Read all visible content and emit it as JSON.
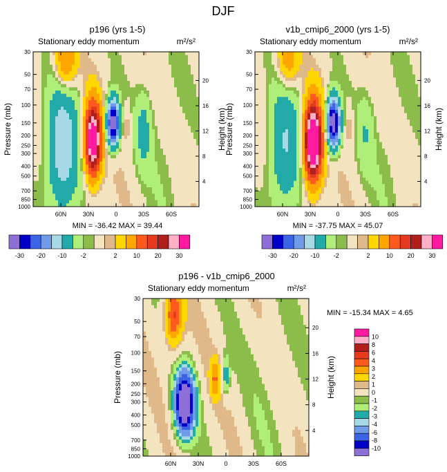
{
  "figure_title": "DJF",
  "palette_main": [
    "#8e6fd6",
    "#0000c8",
    "#3c64e6",
    "#6f9be8",
    "#a6d8e6",
    "#21aaa8",
    "#b0ee7a",
    "#8cbd4a",
    "#f4e3bf",
    "#dfb98a",
    "#ffd700",
    "#ffa500",
    "#ff5a1e",
    "#e53a1e",
    "#b01e1e",
    "#ffb0c8",
    "#ff1aa0"
  ],
  "palette_diff": [
    "#8e6fd6",
    "#0000c8",
    "#3c64e6",
    "#6f9be8",
    "#a6d8e6",
    "#21aaa8",
    "#b0ee7a",
    "#8cbd4a",
    "#f4e3bf",
    "#dfb98a",
    "#ffd700",
    "#ffa500",
    "#ff5a1e",
    "#e53a1e",
    "#b01e1e",
    "#ffb0c8",
    "#ff1aa0"
  ],
  "chart_data": [
    {
      "type": "heatmap",
      "title": "p196 (yrs 1-5)",
      "subtitle_left": "Stationary eddy momentum",
      "units": "m²/s²",
      "ylabel": "Pressure (mb)",
      "ylabel_right": "Height (km)",
      "xticks": [
        "60N",
        "30N",
        "0",
        "30S",
        "60S"
      ],
      "xtick_values": [
        60,
        30,
        0,
        -30,
        -60
      ],
      "xlim": [
        90,
        -90
      ],
      "yticks": [
        "30",
        "50",
        "70",
        "100",
        "150",
        "200",
        "250",
        "300",
        "400",
        "500",
        "700",
        "850",
        "1000"
      ],
      "ytick_values": [
        30,
        50,
        70,
        100,
        150,
        200,
        250,
        300,
        400,
        500,
        700,
        850,
        1000
      ],
      "yrticks": [
        "20",
        "16",
        "12",
        "8",
        "4"
      ],
      "yrtick_values": [
        20,
        16,
        12,
        8,
        4
      ],
      "ylim": [
        1000,
        30
      ],
      "stats": "MIN = -36.42   MAX =  39.44",
      "min": -36.42,
      "max": 39.44,
      "features": [
        {
          "lat": 58,
          "p": 260,
          "amp": -14,
          "wl": 12,
          "wp": 1.05
        },
        {
          "lat": 25,
          "p": 220,
          "amp": 39,
          "wl": 6,
          "wp": 0.55
        },
        {
          "lat": 3,
          "p": 150,
          "amp": -36,
          "wl": 4.5,
          "wp": 0.35
        },
        {
          "lat": -12,
          "p": 160,
          "amp": 3,
          "wl": 3,
          "wp": 0.3
        },
        {
          "lat": -30,
          "p": 180,
          "amp": -6,
          "wl": 6,
          "wp": 0.6
        },
        {
          "lat": 55,
          "p": 35,
          "amp": 12,
          "wl": 8,
          "wp": 0.5
        },
        {
          "lat": -55,
          "p": 300,
          "amp": -1.5,
          "wl": 15,
          "wp": 1.3
        }
      ]
    },
    {
      "type": "heatmap",
      "title": "v1b_cmip6_2000 (yrs 1-5)",
      "subtitle_left": "Stationary eddy momentum",
      "units": "m²/s²",
      "ylabel": "Pressure (mb)",
      "ylabel_right": "Height (km)",
      "xticks": [
        "60N",
        "30N",
        "0",
        "30S",
        "60S"
      ],
      "xtick_values": [
        60,
        30,
        0,
        -30,
        -60
      ],
      "xlim": [
        90,
        -90
      ],
      "yticks": [
        "30",
        "50",
        "70",
        "100",
        "150",
        "200",
        "250",
        "300",
        "400",
        "500",
        "700",
        "850",
        "1000"
      ],
      "ytick_values": [
        30,
        50,
        70,
        100,
        150,
        200,
        250,
        300,
        400,
        500,
        700,
        850,
        1000
      ],
      "yrticks": [
        "20",
        "16",
        "12",
        "8",
        "4"
      ],
      "yrtick_values": [
        20,
        16,
        12,
        8,
        4
      ],
      "ylim": [
        1000,
        30
      ],
      "stats": "MIN = -37.75   MAX =  45.07",
      "min": -37.75,
      "max": 45.07,
      "features": [
        {
          "lat": 58,
          "p": 260,
          "amp": -10,
          "wl": 12,
          "wp": 1.05
        },
        {
          "lat": 27,
          "p": 230,
          "amp": 45,
          "wl": 6.5,
          "wp": 0.6
        },
        {
          "lat": 5,
          "p": 150,
          "amp": -37,
          "wl": 5,
          "wp": 0.38
        },
        {
          "lat": -12,
          "p": 160,
          "amp": 3,
          "wl": 3,
          "wp": 0.3
        },
        {
          "lat": -30,
          "p": 180,
          "amp": -4,
          "wl": 6,
          "wp": 0.6
        },
        {
          "lat": 55,
          "p": 35,
          "amp": 9,
          "wl": 8,
          "wp": 0.5
        },
        {
          "lat": -55,
          "p": 300,
          "amp": -1.5,
          "wl": 15,
          "wp": 1.3
        }
      ]
    },
    {
      "type": "heatmap",
      "title": "p196 - v1b_cmip6_2000",
      "subtitle_left": "Stationary eddy momentum",
      "units": "m²/s²",
      "ylabel": "Pressure (mb)",
      "ylabel_right": "Height (km)",
      "xticks": [
        "60N",
        "30N",
        "0",
        "30S",
        "60S"
      ],
      "xtick_values": [
        60,
        30,
        0,
        -30,
        -60
      ],
      "xlim": [
        90,
        -90
      ],
      "yticks": [
        "30",
        "50",
        "70",
        "100",
        "150",
        "200",
        "250",
        "300",
        "400",
        "500",
        "700",
        "850",
        "1000"
      ],
      "ytick_values": [
        30,
        50,
        70,
        100,
        150,
        200,
        250,
        300,
        400,
        500,
        700,
        850,
        1000
      ],
      "yrticks": [
        "20",
        "16",
        "12",
        "8",
        "4"
      ],
      "yrtick_values": [
        20,
        16,
        12,
        8,
        4
      ],
      "ylim": [
        1000,
        30
      ],
      "stats": "MIN = -15.34   MAX =    4.65",
      "min": -15.34,
      "max": 4.65,
      "features": [
        {
          "lat": 45,
          "p": 310,
          "amp": -15,
          "wl": 7,
          "wp": 0.45
        },
        {
          "lat": 57,
          "p": 45,
          "amp": 4.5,
          "wl": 7,
          "wp": 0.5
        },
        {
          "lat": 12,
          "p": 180,
          "amp": 2.5,
          "wl": 4,
          "wp": 0.3
        },
        {
          "lat": 0,
          "p": 170,
          "amp": -3,
          "wl": 3,
          "wp": 0.3
        },
        {
          "lat": -50,
          "p": 250,
          "amp": -0.5,
          "wl": 20,
          "wp": 1.5
        }
      ]
    }
  ],
  "colorbar_main": {
    "levels": [
      -30,
      -25,
      -20,
      -15,
      -10,
      -5,
      -2,
      -1,
      1,
      2,
      5,
      10,
      15,
      20,
      25,
      30
    ],
    "labels": [
      "-30",
      "-20",
      "-10",
      "-2",
      "2",
      "10",
      "20",
      "30"
    ],
    "label_levels": [
      -30,
      -20,
      -10,
      -2,
      2,
      10,
      20,
      30
    ]
  },
  "colorbar_diff": {
    "levels": [
      -10,
      -8,
      -6,
      -4,
      -3,
      -2,
      -1,
      -0.5,
      0.5,
      1,
      2,
      3,
      4,
      6,
      8,
      10
    ],
    "labels": [
      "10",
      "8",
      "6",
      "4",
      "3",
      "2",
      "1",
      "0",
      "-1",
      "-2",
      "-3",
      "-4",
      "-6",
      "-8",
      "-10"
    ]
  }
}
